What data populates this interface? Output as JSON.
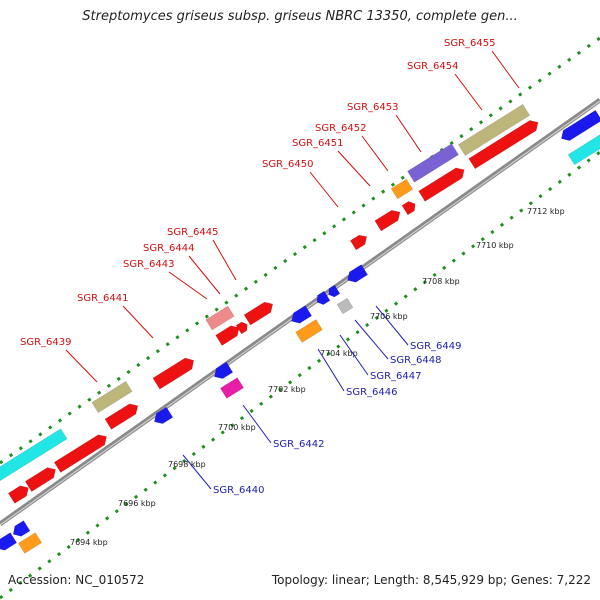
{
  "title": "Streptomyces griseus subsp. griseus NBRC 13350, complete gen...",
  "footer": {
    "accession": "Accession: NC_010572",
    "summary": "Topology: linear; Length: 8,545,929 bp; Genes: 7,222"
  },
  "colors": {
    "forward_gene": "#ee1111",
    "reverse_gene": "#1a1aee",
    "red_label": "#d01010",
    "blue_label": "#2020b0",
    "backbone": "#8a8a8a",
    "tick": "#1f8f1f"
  },
  "scale_ticks": [
    {
      "label": "7694 kbp"
    },
    {
      "label": "7696 kbp"
    },
    {
      "label": "7698 kbp"
    },
    {
      "label": "7700 kbp"
    },
    {
      "label": "7702 kbp"
    },
    {
      "label": "7704 kbp"
    },
    {
      "label": "7706 kbp"
    },
    {
      "label": "7708 kbp"
    },
    {
      "label": "7710 kbp"
    },
    {
      "label": "7712 kbp"
    }
  ],
  "forward_labels": [
    "SGR_6439",
    "SGR_6441",
    "SGR_6443",
    "SGR_6444",
    "SGR_6445",
    "SGR_6450",
    "SGR_6451",
    "SGR_6452",
    "SGR_6453",
    "SGR_6454",
    "SGR_6455"
  ],
  "reverse_labels": [
    "SGR_6440",
    "SGR_6442",
    "SGR_6446",
    "SGR_6447",
    "SGR_6448",
    "SGR_6449"
  ]
}
